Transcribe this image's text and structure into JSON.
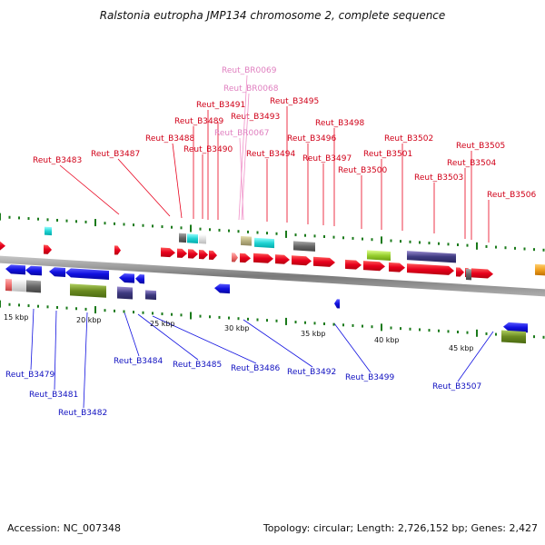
{
  "title": "Ralstonia eutropha JMP134 chromosome 2, complete sequence",
  "accession": "Accession: NC_007348",
  "topology": "Topology: circular; Length: 2,726,152 bp; Genes: 2,427",
  "colors": {
    "forward": "#e8001c",
    "reverse": "#1010e0",
    "rna": "#f090c8",
    "backbone": "#888888",
    "tick": "#1a7a1a"
  },
  "scale_ticks": [
    "15 kbp",
    "20 kbp",
    "25 kbp",
    "30 kbp",
    "35 kbp",
    "40 kbp",
    "45 kbp"
  ],
  "forward_labels": [
    "Reut_B3483",
    "Reut_B3487",
    "Reut_B3488",
    "Reut_B3489",
    "Reut_B3490",
    "Reut_B3491",
    "Reut_B3493",
    "Reut_B3494",
    "Reut_B3495",
    "Reut_B3496",
    "Reut_B3497",
    "Reut_B3498",
    "Reut_B3500",
    "Reut_B3501",
    "Reut_B3502",
    "Reut_B3503",
    "Reut_B3504",
    "Reut_B3505",
    "Reut_B3506"
  ],
  "rna_labels": [
    "Reut_BR0069",
    "Reut_BR0068",
    "Reut_BR0067"
  ],
  "reverse_labels": [
    "Reut_B3479",
    "Reut_B3481",
    "Reut_B3482",
    "Reut_B3484",
    "Reut_B3485",
    "Reut_B3486",
    "Reut_B3492",
    "Reut_B3499",
    "Reut_B3507"
  ]
}
